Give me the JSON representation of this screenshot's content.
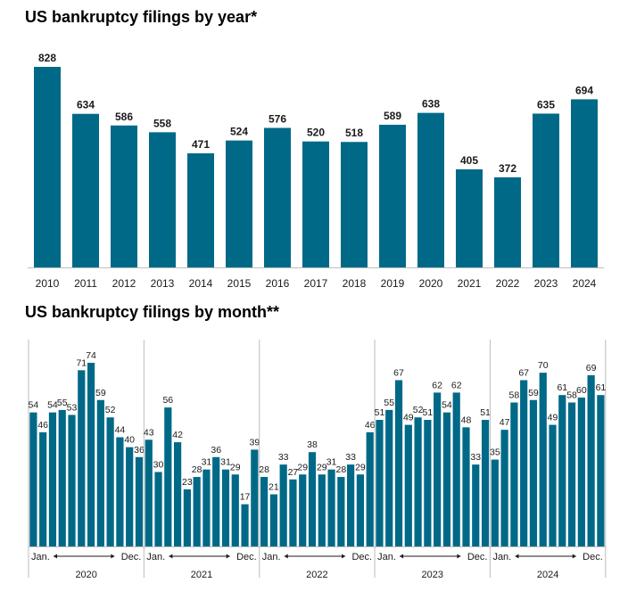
{
  "colors": {
    "bar": "#006987",
    "axis": "#bdbdbd",
    "text": "#1a1a1a"
  },
  "chart_data": [
    {
      "type": "bar",
      "title": "US bankruptcy filings by year*",
      "categories": [
        "2010",
        "2011",
        "2012",
        "2013",
        "2014",
        "2015",
        "2016",
        "2017",
        "2018",
        "2019",
        "2020",
        "2021",
        "2022",
        "2023",
        "2024"
      ],
      "values": [
        828,
        634,
        586,
        558,
        471,
        524,
        576,
        520,
        518,
        589,
        638,
        405,
        372,
        635,
        694
      ],
      "grid": false
    },
    {
      "type": "bar",
      "title": "US bankruptcy filings by month**",
      "groups": [
        {
          "year": "2020",
          "start_label": "Jan.",
          "end_label": "Dec.",
          "values": [
            54,
            46,
            54,
            55,
            53,
            71,
            74,
            59,
            52,
            44,
            40,
            36
          ]
        },
        {
          "year": "2021",
          "start_label": "Jan.",
          "end_label": "Dec.",
          "values": [
            43,
            30,
            56,
            42,
            23,
            28,
            31,
            36,
            31,
            29,
            17,
            39
          ]
        },
        {
          "year": "2022",
          "start_label": "Jan.",
          "end_label": "Dec.",
          "values": [
            28,
            21,
            33,
            27,
            29,
            38,
            29,
            31,
            28,
            33,
            29,
            46
          ]
        },
        {
          "year": "2023",
          "start_label": "Jan.",
          "end_label": "Dec.",
          "values": [
            51,
            55,
            67,
            49,
            52,
            51,
            62,
            54,
            62,
            48,
            33,
            51
          ]
        },
        {
          "year": "2024",
          "start_label": "Jan.",
          "end_label": "Dec.",
          "values": [
            35,
            47,
            58,
            67,
            59,
            70,
            49,
            61,
            58,
            60,
            69,
            61
          ]
        }
      ],
      "grid": false
    }
  ]
}
